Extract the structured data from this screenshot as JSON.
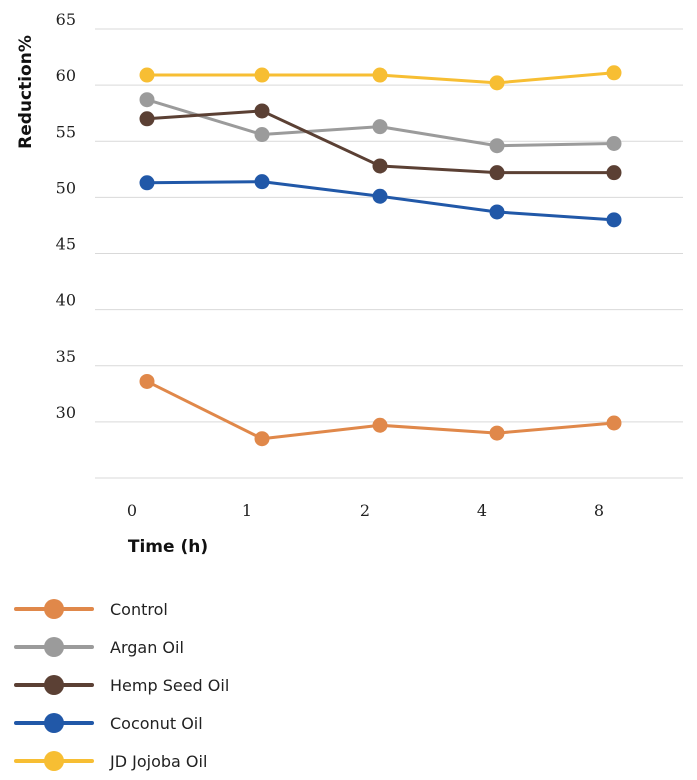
{
  "chart_data": {
    "type": "line",
    "title": "",
    "xlabel": "Time (h)",
    "ylabel": "Reduction%",
    "categories": [
      "0",
      "1",
      "2",
      "4",
      "8"
    ],
    "ylim": [
      25,
      65
    ],
    "yticks": [
      "30",
      "35",
      "40",
      "45",
      "50",
      "55",
      "60",
      "65"
    ],
    "grid": true,
    "legend_position": "bottom",
    "series": [
      {
        "name": "Control",
        "color": "#E0884A",
        "values": [
          33.6,
          28.5,
          29.7,
          29.0,
          29.9
        ]
      },
      {
        "name": "Argan Oil",
        "color": "#9B9B9B",
        "values": [
          58.7,
          55.6,
          56.3,
          54.6,
          54.8
        ]
      },
      {
        "name": "Hemp Seed Oil",
        "color": "#5B4034",
        "values": [
          57.0,
          57.7,
          52.8,
          52.2,
          52.2
        ]
      },
      {
        "name": "Coconut Oil",
        "color": "#2158A8",
        "values": [
          51.3,
          51.4,
          50.1,
          48.7,
          48.0
        ]
      },
      {
        "name": "JD Jojoba Oil",
        "color": "#F7BE33",
        "values": [
          60.9,
          60.9,
          60.9,
          60.2,
          61.1
        ]
      }
    ]
  }
}
